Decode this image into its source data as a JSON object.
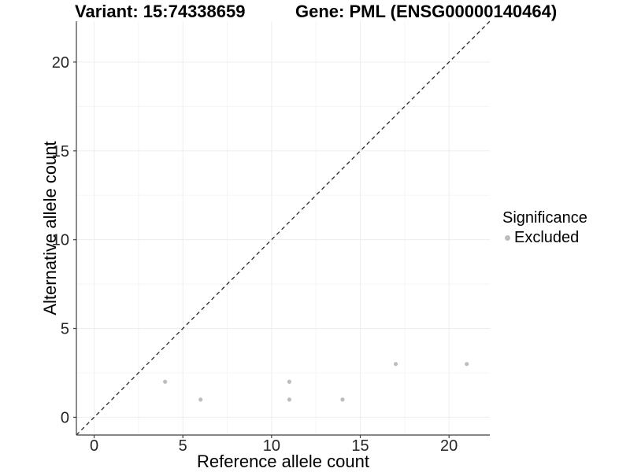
{
  "chart_data": {
    "type": "scatter",
    "title_left": "Variant: 15:74338659",
    "title_right": "Gene: PML (ENSG00000140464)",
    "xlabel": "Reference allele count",
    "ylabel": "Alternative allele count",
    "xlim": [
      -1,
      22.3
    ],
    "ylim": [
      -1,
      22.3
    ],
    "x_ticks": [
      0,
      5,
      10,
      15,
      20
    ],
    "y_ticks": [
      0,
      5,
      10,
      15,
      20
    ],
    "minor_tick_step": 2.5,
    "grid": "major+minor",
    "identity_line": {
      "equation": "y = x",
      "style": "dashed",
      "color": "#2a2a2a"
    },
    "legend": {
      "title": "Significance",
      "position": "right",
      "entries": [
        {
          "label": "Excluded",
          "color": "#bdbdbd"
        }
      ]
    },
    "series": [
      {
        "name": "Excluded",
        "color": "#bdbdbd",
        "points": [
          [
            4,
            2
          ],
          [
            6,
            1
          ],
          [
            11,
            1
          ],
          [
            11,
            2
          ],
          [
            14,
            1
          ],
          [
            17,
            3
          ],
          [
            21,
            3
          ]
        ]
      }
    ],
    "colors": {
      "point": "#bdbdbd",
      "axis_line": "#3f3f3f",
      "tick_mark": "#3f3f3f",
      "grid_major": "#ededed",
      "grid_minor": "#f5f5f5",
      "tick_label": "#262626"
    }
  }
}
